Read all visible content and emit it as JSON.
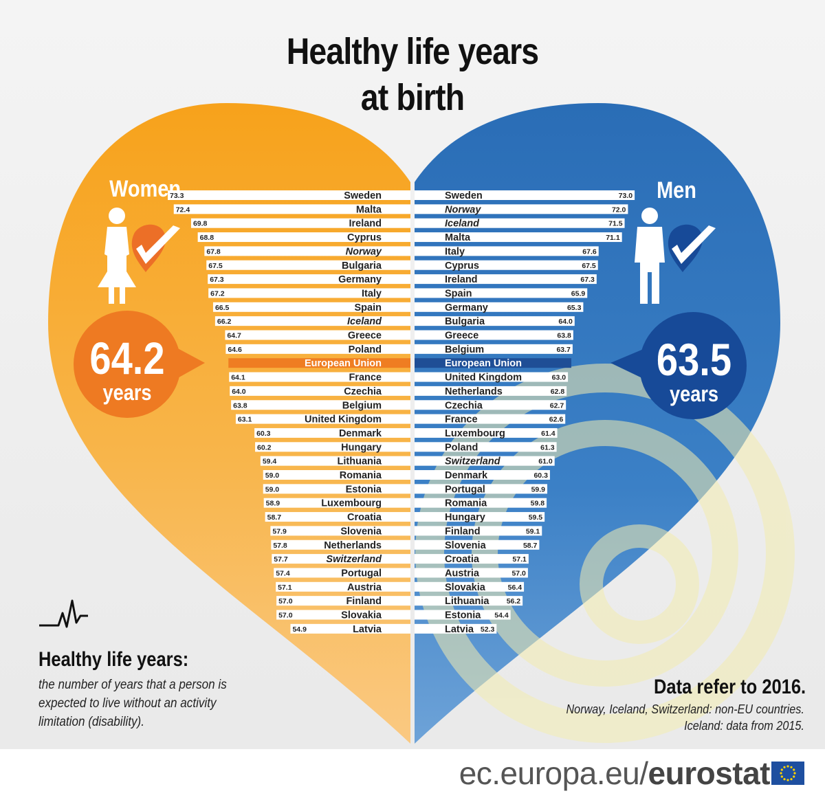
{
  "title_line1": "Healthy life years",
  "title_line2": "at birth",
  "women": {
    "label": "Women",
    "total_value": "64.2",
    "total_unit": "years"
  },
  "men": {
    "label": "Men",
    "total_value": "63.5",
    "total_unit": "years"
  },
  "definition": {
    "title": "Healthy life years:",
    "text": "the number of years that a person is expected to live without an activity limitation (disability)."
  },
  "note": {
    "title": "Data refer to 2016.",
    "line1": "Norway, Iceland, Switzerland: non-EU countries.",
    "line2": "Iceland: data from 2015."
  },
  "footer": {
    "domain": "ec.europa.eu/",
    "brand": "eurostat"
  },
  "colors": {
    "women": "#f6a21e",
    "men": "#2e71b8",
    "eu_women": "#ef7d22",
    "eu_men": "#1f4e96",
    "circle_women": "#ee7a22",
    "circle_men": "#174a98"
  },
  "chart_data": [
    {
      "type": "bar",
      "series_name": "Women",
      "direction": "right-to-left",
      "italic_countries": [
        "Norway",
        "Iceland",
        "Switzerland"
      ],
      "highlight": "European Union",
      "categories": [
        "Sweden",
        "Malta",
        "Ireland",
        "Cyprus",
        "Norway",
        "Bulgaria",
        "Germany",
        "Italy",
        "Spain",
        "Iceland",
        "Greece",
        "Poland",
        "European Union",
        "France",
        "Czechia",
        "Belgium",
        "United Kingdom",
        "Denmark",
        "Hungary",
        "Lithuania",
        "Romania",
        "Estonia",
        "Luxembourg",
        "Croatia",
        "Slovenia",
        "Netherlands",
        "Switzerland",
        "Portugal",
        "Austria",
        "Finland",
        "Slovakia",
        "Latvia"
      ],
      "values": [
        73.3,
        72.4,
        69.8,
        68.8,
        67.8,
        67.5,
        67.3,
        67.2,
        66.5,
        66.2,
        64.7,
        64.6,
        64.2,
        64.1,
        64.0,
        63.8,
        63.1,
        60.3,
        60.2,
        59.4,
        59.0,
        59.0,
        58.9,
        58.7,
        57.9,
        57.8,
        57.7,
        57.4,
        57.1,
        57.0,
        57.0,
        54.9
      ],
      "labels": [
        "73.3",
        "72.4",
        "69.8",
        "68.8",
        "67.8",
        "67.5",
        "67.3",
        "67.2",
        "66.5",
        "66.2",
        "64.7",
        "64.6",
        "",
        "64.1",
        "64.0",
        "63.8",
        "63.1",
        "60.3",
        "60.2",
        "59.4",
        "59.0",
        "59.0",
        "58.9",
        "58.7",
        "57.9",
        "57.8",
        "57.7",
        "57.4",
        "57.1",
        "57.0",
        "57.0",
        "54.9"
      ]
    },
    {
      "type": "bar",
      "series_name": "Men",
      "direction": "left-to-right",
      "italic_countries": [
        "Norway",
        "Iceland",
        "Switzerland"
      ],
      "highlight": "European Union",
      "categories": [
        "Sweden",
        "Norway",
        "Iceland",
        "Malta",
        "Italy",
        "Cyprus",
        "Ireland",
        "Spain",
        "Germany",
        "Bulgaria",
        "Greece",
        "Belgium",
        "European Union",
        "United Kingdom",
        "Netherlands",
        "Czechia",
        "France",
        "Luxembourg",
        "Poland",
        "Switzerland",
        "Denmark",
        "Portugal",
        "Romania",
        "Hungary",
        "Finland",
        "Slovenia",
        "Croatia",
        "Austria",
        "Slovakia",
        "Lithuania",
        "Estonia",
        "Latvia"
      ],
      "values": [
        73.0,
        72.0,
        71.5,
        71.1,
        67.6,
        67.5,
        67.3,
        65.9,
        65.3,
        64.0,
        63.8,
        63.7,
        63.5,
        63.0,
        62.8,
        62.7,
        62.6,
        61.4,
        61.3,
        61.0,
        60.3,
        59.9,
        59.8,
        59.5,
        59.1,
        58.7,
        57.1,
        57.0,
        56.4,
        56.2,
        54.4,
        52.3
      ],
      "labels": [
        "73.0",
        "72.0",
        "71.5",
        "71.1",
        "67.6",
        "67.5",
        "67.3",
        "65.9",
        "65.3",
        "64.0",
        "63.8",
        "63.7",
        "",
        "63.0",
        "62.8",
        "62.7",
        "62.6",
        "61.4",
        "61.3",
        "61.0",
        "60.3",
        "59.9",
        "59.8",
        "59.5",
        "59.1",
        "58.7",
        "57.1",
        "57.0",
        "56.4",
        "56.2",
        "54.4",
        "52.3"
      ]
    }
  ]
}
